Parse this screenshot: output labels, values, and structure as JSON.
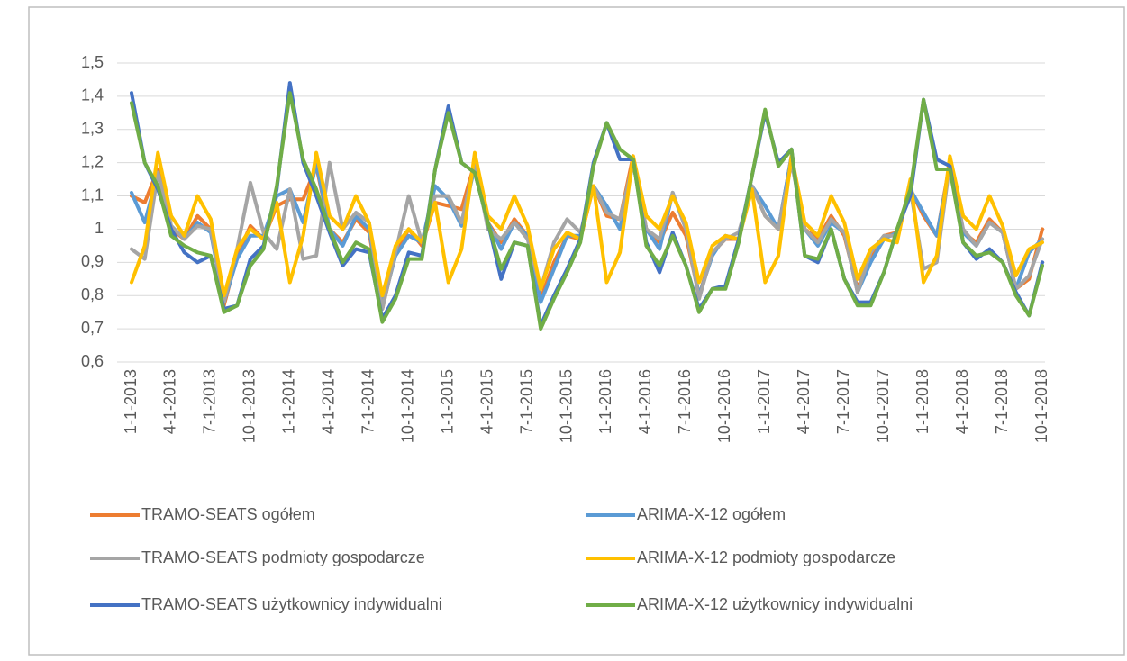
{
  "chart_data": {
    "type": "line",
    "categories": [
      "1-1-2013",
      null,
      null,
      "4-1-2013",
      null,
      null,
      "7-1-2013",
      null,
      null,
      "10-1-2013",
      null,
      null,
      "1-1-2014",
      null,
      null,
      "4-1-2014",
      null,
      null,
      "7-1-2014",
      null,
      null,
      "10-1-2014",
      null,
      null,
      "1-1-2015",
      null,
      null,
      "4-1-2015",
      null,
      null,
      "7-1-2015",
      null,
      null,
      "10-1-2015",
      null,
      null,
      "1-1-2016",
      null,
      null,
      "4-1-2016",
      null,
      null,
      "7-1-2016",
      null,
      null,
      "10-1-2016",
      null,
      null,
      "1-1-2017",
      null,
      null,
      "4-1-2017",
      null,
      null,
      "7-1-2017",
      null,
      null,
      "10-1-2017",
      null,
      null,
      "1-1-2018",
      null,
      null,
      "4-1-2018",
      null,
      null,
      "7-1-2018",
      null,
      null,
      "10-1-2018"
    ],
    "ylim": [
      0.6,
      1.5
    ],
    "yticks": [
      {
        "value": 0.6,
        "label": "0,6"
      },
      {
        "value": 0.7,
        "label": "0,7"
      },
      {
        "value": 0.8,
        "label": "0,8"
      },
      {
        "value": 0.9,
        "label": "0,9"
      },
      1,
      {
        "value": 1.1,
        "label": "1,1"
      },
      {
        "value": 1.2,
        "label": "1,2"
      },
      {
        "value": 1.3,
        "label": "1,3"
      },
      {
        "value": 1.4,
        "label": "1,4"
      },
      {
        "value": 1.5,
        "label": "1,5"
      }
    ],
    "grid": true,
    "legend": "bottom",
    "series": [
      {
        "name": "TRAMO-SEATS ogółem",
        "color": "#ed7d31",
        "values": [
          1.1,
          1.08,
          1.18,
          1.0,
          0.97,
          1.04,
          1.0,
          0.77,
          0.92,
          1.01,
          0.97,
          1.07,
          1.09,
          1.09,
          1.19,
          1.0,
          0.96,
          1.03,
          0.99,
          0.76,
          0.93,
          1.0,
          0.95,
          1.08,
          1.07,
          1.06,
          1.2,
          1.02,
          0.96,
          1.03,
          0.98,
          0.79,
          0.9,
          0.98,
          0.97,
          1.13,
          1.04,
          1.03,
          1.22,
          1.0,
          0.96,
          1.05,
          0.98,
          0.8,
          0.93,
          0.97,
          0.97,
          1.13,
          1.04,
          1.0,
          1.22,
          1.0,
          0.97,
          1.04,
          0.98,
          0.82,
          0.92,
          0.98,
          0.99,
          1.12,
          1.04,
          0.98,
          1.2,
          0.99,
          0.96,
          1.03,
          0.99,
          0.82,
          0.85,
          1.0
        ]
      },
      {
        "name": "ARIMA-X-12 ogółem",
        "color": "#5b9bd5",
        "values": [
          1.11,
          1.02,
          1.17,
          1.01,
          0.97,
          1.02,
          0.99,
          0.78,
          0.91,
          0.98,
          0.98,
          1.1,
          1.12,
          1.02,
          1.2,
          1.0,
          0.95,
          1.04,
          1.0,
          0.77,
          0.92,
          0.98,
          0.96,
          1.13,
          1.09,
          1.01,
          1.19,
          1.02,
          0.94,
          1.02,
          0.98,
          0.78,
          0.88,
          0.98,
          0.98,
          1.13,
          1.07,
          1.0,
          1.2,
          1.0,
          0.94,
          1.11,
          1.0,
          0.8,
          0.92,
          0.98,
          0.97,
          1.13,
          1.07,
          1.0,
          1.22,
          1.0,
          0.95,
          1.02,
          0.99,
          0.81,
          0.9,
          0.97,
          0.99,
          1.12,
          1.05,
          0.98,
          1.19,
          0.99,
          0.95,
          1.02,
          0.99,
          0.82,
          0.93,
          0.97
        ]
      },
      {
        "name": "TRAMO-SEATS podmioty gospodarcze",
        "color": "#a5a5a5",
        "values": [
          0.94,
          0.91,
          1.17,
          1.01,
          0.97,
          1.01,
          1.0,
          0.78,
          0.94,
          1.14,
          0.99,
          0.94,
          1.12,
          0.91,
          0.92,
          1.2,
          1.0,
          1.05,
          1.02,
          0.76,
          0.93,
          1.1,
          0.96,
          1.1,
          1.1,
          1.02,
          1.2,
          1.0,
          0.97,
          1.02,
          0.97,
          0.82,
          0.96,
          1.03,
          0.99,
          1.13,
          1.05,
          1.03,
          1.2,
          1.0,
          0.97,
          1.11,
          1.0,
          0.79,
          0.93,
          0.97,
          0.99,
          1.13,
          1.04,
          1.0,
          1.2,
          1.0,
          0.96,
          1.03,
          0.99,
          0.81,
          0.93,
          0.98,
          0.98,
          1.12,
          0.88,
          0.9,
          1.2,
          1.0,
          0.95,
          1.02,
          0.99,
          0.82,
          0.86,
          0.97
        ]
      },
      {
        "name": "ARIMA-X-12 podmioty gospodarcze",
        "color": "#ffc000",
        "values": [
          0.84,
          0.95,
          1.23,
          1.04,
          0.98,
          1.1,
          1.03,
          0.8,
          0.94,
          1.0,
          0.97,
          1.08,
          0.84,
          0.98,
          1.23,
          1.04,
          1.0,
          1.1,
          1.02,
          0.8,
          0.95,
          1.0,
          0.96,
          1.08,
          0.84,
          0.94,
          1.23,
          1.04,
          1.0,
          1.1,
          1.01,
          0.82,
          0.94,
          0.99,
          0.97,
          1.13,
          0.84,
          0.93,
          1.22,
          1.04,
          1.0,
          1.1,
          1.02,
          0.84,
          0.95,
          0.98,
          0.97,
          1.12,
          0.84,
          0.92,
          1.22,
          1.02,
          0.98,
          1.1,
          1.02,
          0.85,
          0.94,
          0.97,
          0.96,
          1.15,
          0.84,
          0.92,
          1.22,
          1.04,
          1.0,
          1.1,
          1.01,
          0.86,
          0.94,
          0.96
        ]
      },
      {
        "name": "TRAMO-SEATS użytkownicy indywidualni",
        "color": "#4472c4",
        "values": [
          1.41,
          1.2,
          1.12,
          1.0,
          0.93,
          0.9,
          0.92,
          0.76,
          0.77,
          0.91,
          0.95,
          1.12,
          1.44,
          1.2,
          1.1,
          0.99,
          0.89,
          0.94,
          0.93,
          0.73,
          0.8,
          0.93,
          0.92,
          1.18,
          1.37,
          1.2,
          1.17,
          1.02,
          0.85,
          0.96,
          0.95,
          0.71,
          0.8,
          0.88,
          0.97,
          1.2,
          1.32,
          1.21,
          1.21,
          0.96,
          0.87,
          0.99,
          0.89,
          0.76,
          0.82,
          0.83,
          0.97,
          1.16,
          1.35,
          1.2,
          1.24,
          0.92,
          0.9,
          1.0,
          0.85,
          0.78,
          0.78,
          0.87,
          1.0,
          1.1,
          1.39,
          1.21,
          1.19,
          0.96,
          0.91,
          0.94,
          0.9,
          0.81,
          0.74,
          0.9
        ]
      },
      {
        "name": "ARIMA-X-12 użytkownicy indywidualni",
        "color": "#70ad47",
        "values": [
          1.38,
          1.2,
          1.13,
          0.98,
          0.95,
          0.93,
          0.92,
          0.75,
          0.77,
          0.89,
          0.94,
          1.13,
          1.41,
          1.21,
          1.12,
          1.0,
          0.9,
          0.96,
          0.94,
          0.72,
          0.79,
          0.91,
          0.91,
          1.18,
          1.35,
          1.2,
          1.17,
          1.02,
          0.88,
          0.96,
          0.95,
          0.7,
          0.79,
          0.87,
          0.96,
          1.19,
          1.32,
          1.24,
          1.21,
          0.95,
          0.89,
          0.98,
          0.89,
          0.75,
          0.82,
          0.82,
          0.96,
          1.16,
          1.36,
          1.19,
          1.24,
          0.92,
          0.91,
          1.0,
          0.85,
          0.77,
          0.77,
          0.87,
          1.0,
          1.12,
          1.39,
          1.18,
          1.18,
          0.96,
          0.92,
          0.93,
          0.9,
          0.8,
          0.74,
          0.89
        ]
      }
    ]
  }
}
